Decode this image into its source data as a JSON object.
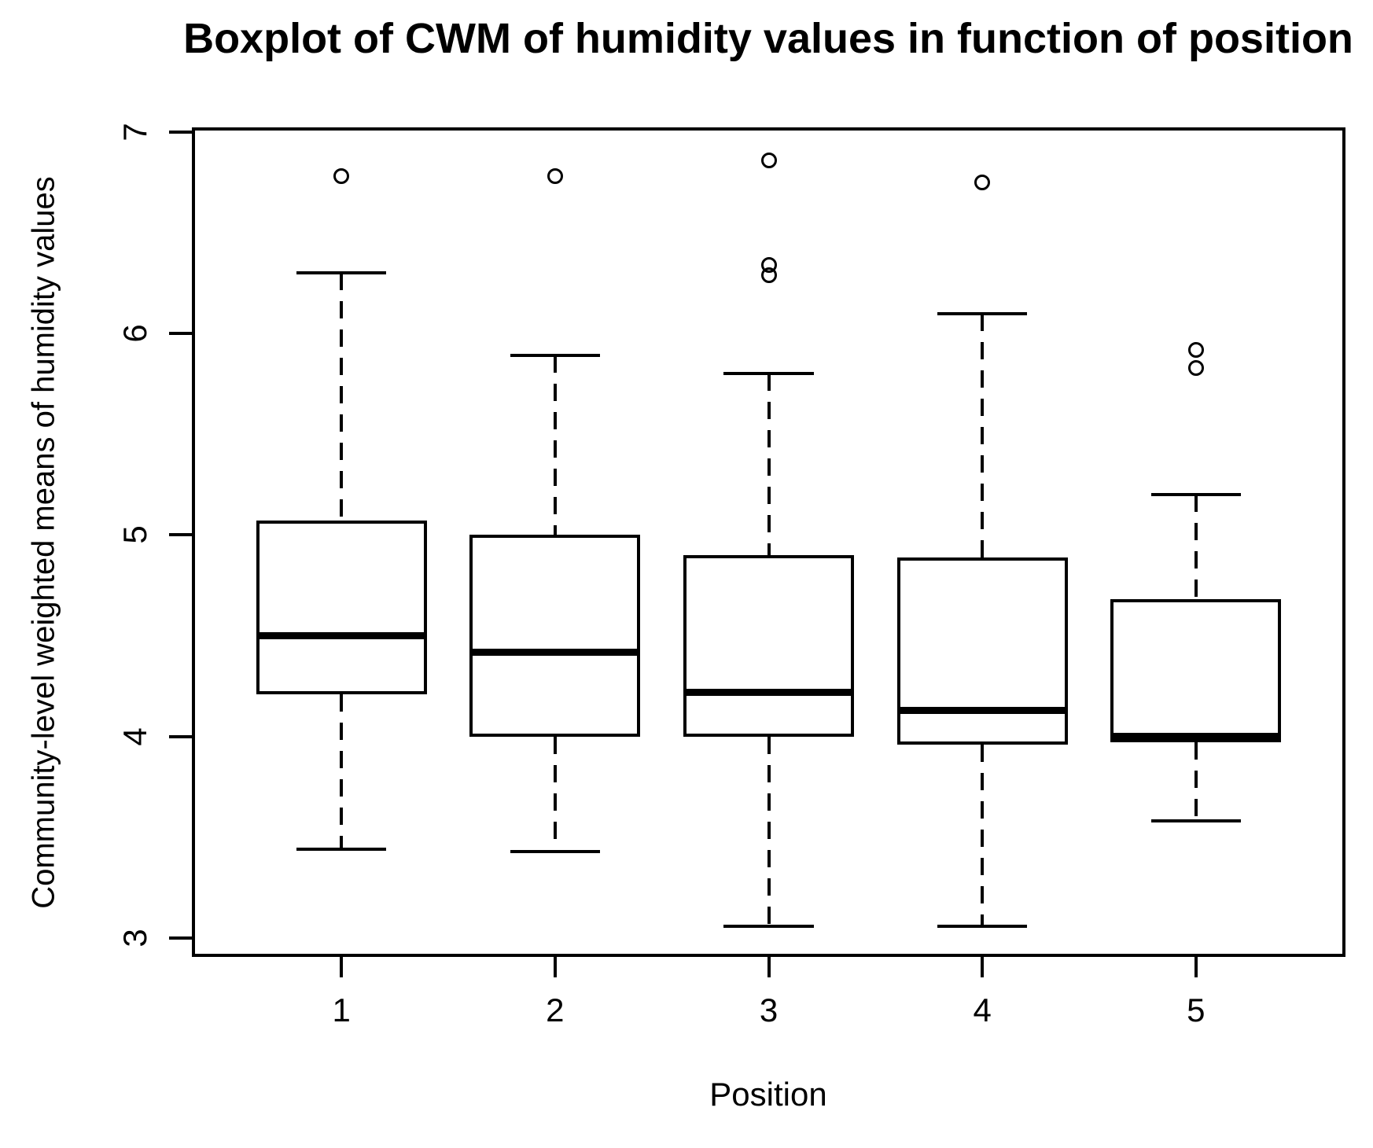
{
  "colors": {
    "foreground": "#000000",
    "background": "#ffffff"
  },
  "chart_data": {
    "type": "boxplot",
    "title": "Boxplot of CWM of humidity values in function of position",
    "xlabel": "Position",
    "ylabel": "Community-level weighted means of humidity values",
    "categories": [
      "1",
      "2",
      "3",
      "4",
      "5"
    ],
    "y_ticks": [
      3,
      4,
      5,
      6,
      7
    ],
    "ylim": [
      2.906,
      7.023
    ],
    "xlim": [
      0.3,
      5.7
    ],
    "grid": false,
    "legend": false,
    "box_width_units": 0.8,
    "cap_width_units": 0.42,
    "series": [
      {
        "position": "1",
        "lower_whisker": 3.44,
        "q1": 4.21,
        "median": 4.5,
        "q3": 5.07,
        "upper_whisker": 6.3,
        "outliers": [
          6.78
        ]
      },
      {
        "position": "2",
        "lower_whisker": 3.43,
        "q1": 4.0,
        "median": 4.42,
        "q3": 5.0,
        "upper_whisker": 5.89,
        "outliers": [
          6.78
        ]
      },
      {
        "position": "3",
        "lower_whisker": 3.06,
        "q1": 4.0,
        "median": 4.22,
        "q3": 4.9,
        "upper_whisker": 5.8,
        "outliers": [
          6.29,
          6.34,
          6.86
        ]
      },
      {
        "position": "4",
        "lower_whisker": 3.06,
        "q1": 3.96,
        "median": 4.13,
        "q3": 4.89,
        "upper_whisker": 6.1,
        "outliers": [
          6.75
        ]
      },
      {
        "position": "5",
        "lower_whisker": 3.58,
        "q1": 3.97,
        "median": 4.0,
        "q3": 4.68,
        "upper_whisker": 5.2,
        "outliers": [
          5.83,
          5.92
        ]
      }
    ]
  }
}
